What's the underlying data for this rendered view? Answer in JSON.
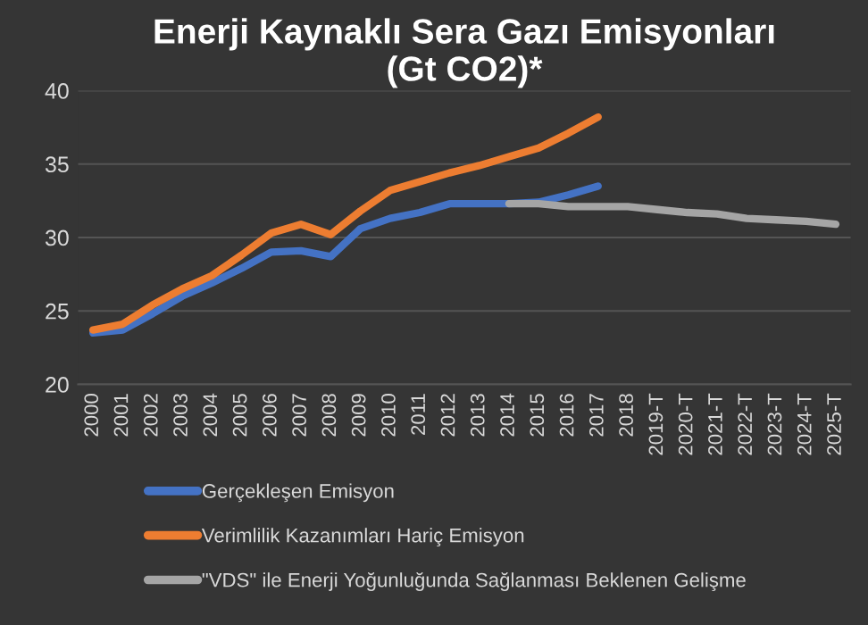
{
  "chart_data": {
    "type": "line",
    "title": "Enerji Kaynaklı Sera Gazı Emisyonları\n(Gt CO2)*",
    "categories": [
      "2000",
      "2001",
      "2002",
      "2003",
      "2004",
      "2005",
      "2006",
      "2007",
      "2008",
      "2009",
      "2010",
      "2011",
      "2012",
      "2013",
      "2014",
      "2015",
      "2016",
      "2017",
      "2018",
      "2019-T",
      "2020-T",
      "2021-T",
      "2022-T",
      "2023-T",
      "2024-T",
      "2025-T"
    ],
    "series": [
      {
        "name": "Gerçekleşen Emisyon",
        "color": "#4472c4",
        "values": [
          23.5,
          23.7,
          24.8,
          26.0,
          26.9,
          27.9,
          29.0,
          29.1,
          28.7,
          30.6,
          31.3,
          31.7,
          32.3,
          32.3,
          32.3,
          32.4,
          32.9,
          33.5,
          null,
          null,
          null,
          null,
          null,
          null,
          null,
          null
        ]
      },
      {
        "name": "Verimlilik Kazanımları Hariç Emisyon",
        "color": "#ed7d31",
        "values": [
          23.7,
          24.1,
          25.4,
          26.5,
          27.4,
          28.8,
          30.3,
          30.9,
          30.2,
          31.8,
          33.2,
          33.8,
          34.4,
          34.9,
          35.5,
          36.1,
          37.1,
          38.2,
          null,
          null,
          null,
          null,
          null,
          null,
          null,
          null
        ]
      },
      {
        "name": "\"VDS\" ile Enerji Yoğunluğunda Sağlanması Beklenen Gelişme",
        "color": "#a5a5a5",
        "values": [
          null,
          null,
          null,
          null,
          null,
          null,
          null,
          null,
          null,
          null,
          null,
          null,
          null,
          null,
          32.3,
          32.3,
          32.1,
          32.1,
          32.1,
          31.9,
          31.7,
          31.6,
          31.3,
          31.2,
          31.1,
          30.9
        ]
      }
    ],
    "ylim": [
      20,
      40
    ],
    "yticks": [
      20,
      25,
      30,
      35,
      40
    ],
    "grid": "y",
    "legend": "bottom"
  }
}
